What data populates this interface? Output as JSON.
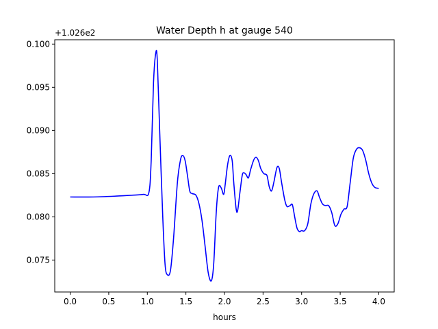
{
  "chart_data": {
    "type": "line",
    "title": "Water Depth h at gauge 540",
    "xlabel": "hours",
    "ylabel": "",
    "y_offset_label": "+1.026e2",
    "xlim": [
      -0.2,
      4.2
    ],
    "ylim": [
      0.0713,
      0.1005
    ],
    "x_ticks": [
      0.0,
      0.5,
      1.0,
      1.5,
      2.0,
      2.5,
      3.0,
      3.5,
      4.0
    ],
    "x_tick_labels": [
      "0.0",
      "0.5",
      "1.0",
      "1.5",
      "2.0",
      "2.5",
      "3.0",
      "3.5",
      "4.0"
    ],
    "y_ticks": [
      0.075,
      0.08,
      0.085,
      0.09,
      0.095,
      0.1
    ],
    "y_tick_labels": [
      "0.075",
      "0.080",
      "0.085",
      "0.090",
      "0.095",
      "0.100"
    ],
    "grid": false,
    "series": [
      {
        "color": "#0000ff",
        "x": [
          0.0,
          0.3,
          0.6,
          0.8,
          0.95,
          1.02,
          1.05,
          1.08,
          1.11,
          1.13,
          1.16,
          1.2,
          1.23,
          1.26,
          1.3,
          1.34,
          1.39,
          1.43,
          1.46,
          1.49,
          1.52,
          1.55,
          1.58,
          1.63,
          1.67,
          1.71,
          1.75,
          1.79,
          1.83,
          1.86,
          1.89,
          1.91,
          1.93,
          1.96,
          1.99,
          2.01,
          2.04,
          2.07,
          2.1,
          2.12,
          2.15,
          2.17,
          2.2,
          2.23,
          2.25,
          2.28,
          2.31,
          2.34,
          2.38,
          2.41,
          2.44,
          2.47,
          2.51,
          2.55,
          2.58,
          2.61,
          2.64,
          2.68,
          2.71,
          2.74,
          2.78,
          2.81,
          2.85,
          2.88,
          2.91,
          2.94,
          2.97,
          3.0,
          3.04,
          3.08,
          3.12,
          3.16,
          3.2,
          3.23,
          3.27,
          3.31,
          3.35,
          3.39,
          3.43,
          3.47,
          3.51,
          3.55,
          3.59,
          3.63,
          3.67,
          3.71,
          3.75,
          3.79,
          3.83,
          3.87,
          3.91,
          3.95,
          4.0
        ],
        "y": [
          0.0823,
          0.0823,
          0.0824,
          0.0825,
          0.0826,
          0.0828,
          0.0865,
          0.0955,
          0.099,
          0.098,
          0.09,
          0.08,
          0.0745,
          0.0733,
          0.0738,
          0.0775,
          0.084,
          0.0866,
          0.0871,
          0.0865,
          0.0848,
          0.083,
          0.0827,
          0.0825,
          0.0815,
          0.0795,
          0.0765,
          0.0735,
          0.0726,
          0.0745,
          0.08,
          0.0825,
          0.0836,
          0.0833,
          0.0826,
          0.0838,
          0.086,
          0.0871,
          0.0865,
          0.084,
          0.081,
          0.0807,
          0.0828,
          0.0848,
          0.0851,
          0.0849,
          0.0845,
          0.0855,
          0.0866,
          0.0869,
          0.0865,
          0.0856,
          0.085,
          0.0848,
          0.0835,
          0.083,
          0.084,
          0.0857,
          0.0856,
          0.084,
          0.082,
          0.0812,
          0.0813,
          0.0814,
          0.08,
          0.0787,
          0.0783,
          0.0784,
          0.0784,
          0.0792,
          0.0815,
          0.0827,
          0.083,
          0.0823,
          0.0815,
          0.0813,
          0.0813,
          0.0805,
          0.079,
          0.0792,
          0.0803,
          0.0809,
          0.0812,
          0.084,
          0.0868,
          0.0878,
          0.088,
          0.0877,
          0.0866,
          0.085,
          0.0839,
          0.0834,
          0.0833
        ]
      }
    ]
  }
}
